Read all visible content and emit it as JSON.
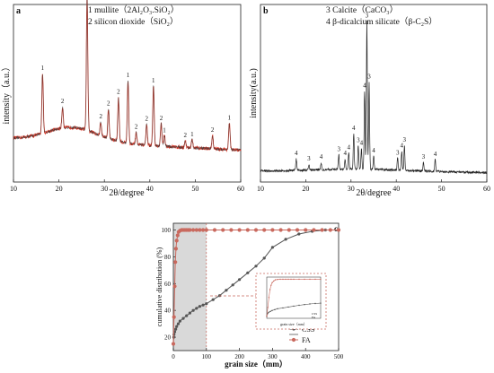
{
  "chart_data": [
    {
      "type": "line",
      "panel": "a",
      "legend": [
        "1 mullite（2Al₂O₃.SiO₂）",
        "2 silicon dioxide（SiO₂）"
      ],
      "xlabel": "2θ/degree",
      "ylabel": "intensity（a.u.）",
      "xlim": [
        10,
        60
      ],
      "xticks": [
        "10",
        "20",
        "30",
        "40",
        "50",
        "60"
      ],
      "line_colors": [
        "#e03a2a",
        "#3a3a3a"
      ],
      "peaks": [
        {
          "x": 16.4,
          "h": 0.45,
          "label": "1"
        },
        {
          "x": 20.8,
          "h": 0.16,
          "label": "2"
        },
        {
          "x": 26.2,
          "h": 1.0,
          "label": "1"
        },
        {
          "x": 29.2,
          "h": 0.1,
          "label": "2"
        },
        {
          "x": 30.9,
          "h": 0.22,
          "label": "2"
        },
        {
          "x": 33.1,
          "h": 0.33,
          "label": "2"
        },
        {
          "x": 35.2,
          "h": 0.47,
          "label": "1"
        },
        {
          "x": 37.0,
          "h": 0.09,
          "label": "2"
        },
        {
          "x": 39.3,
          "h": 0.16,
          "label": "2"
        },
        {
          "x": 40.8,
          "h": 0.45,
          "label": "1"
        },
        {
          "x": 42.5,
          "h": 0.17,
          "label": "2"
        },
        {
          "x": 43.2,
          "h": 0.08,
          "label": "1"
        },
        {
          "x": 47.8,
          "h": 0.05,
          "label": "2"
        },
        {
          "x": 49.3,
          "h": 0.06,
          "label": "1"
        },
        {
          "x": 53.8,
          "h": 0.1,
          "label": "2"
        },
        {
          "x": 57.5,
          "h": 0.2,
          "label": "1"
        }
      ]
    },
    {
      "type": "line",
      "panel": "b",
      "legend": [
        "3 Calcite（CaCO₃）",
        "4 β-dicalcium silicate（β-C₂S）"
      ],
      "xlabel": "2θ/degree",
      "ylabel": "intensity(a.u.)",
      "xlim": [
        10,
        60
      ],
      "xticks": [
        "10",
        "20",
        "30",
        "40",
        "50",
        "60"
      ],
      "line_color": "#222222",
      "peaks": [
        {
          "x": 17.9,
          "h": 0.08,
          "label": "4"
        },
        {
          "x": 20.7,
          "h": 0.04,
          "label": "3"
        },
        {
          "x": 23.4,
          "h": 0.05,
          "label": "4"
        },
        {
          "x": 27.3,
          "h": 0.1,
          "label": "3"
        },
        {
          "x": 28.7,
          "h": 0.07,
          "label": "4"
        },
        {
          "x": 29.5,
          "h": 0.11,
          "label": "4"
        },
        {
          "x": 30.6,
          "h": 0.24,
          "label": "4"
        },
        {
          "x": 31.6,
          "h": 0.16,
          "label": "3"
        },
        {
          "x": 32.3,
          "h": 0.14,
          "label": "4"
        },
        {
          "x": 33.0,
          "h": 0.53,
          "label": "4"
        },
        {
          "x": 33.5,
          "h": 1.0,
          "label": "3"
        },
        {
          "x": 34.0,
          "h": 0.59,
          "label": "3"
        },
        {
          "x": 35.0,
          "h": 0.09,
          "label": "4"
        },
        {
          "x": 40.3,
          "h": 0.08,
          "label": "3"
        },
        {
          "x": 41.2,
          "h": 0.13,
          "label": "4"
        },
        {
          "x": 41.8,
          "h": 0.17,
          "label": "3"
        },
        {
          "x": 46.0,
          "h": 0.06,
          "label": "3"
        },
        {
          "x": 48.6,
          "h": 0.08,
          "label": "4"
        }
      ]
    },
    {
      "type": "line",
      "panel": "c",
      "xlabel": "grain size（mm）",
      "ylabel": "cumulative distribution (%)",
      "xlim": [
        0,
        500
      ],
      "ylim": [
        10,
        105
      ],
      "xticks": [
        "0",
        "100",
        "200",
        "300",
        "400",
        "500"
      ],
      "yticks": [
        "20",
        "40",
        "60",
        "80",
        "100"
      ],
      "shaded_region": [
        0,
        100
      ],
      "series": [
        {
          "name": "CSS",
          "color": "#555555",
          "x": [
            0,
            1,
            2,
            4,
            7,
            10,
            15,
            20,
            30,
            40,
            50,
            60,
            70,
            80,
            90,
            100,
            120,
            140,
            160,
            180,
            200,
            225,
            250,
            275,
            300,
            340,
            380,
            420,
            460,
            500
          ],
          "y": [
            15,
            20,
            22,
            24,
            26,
            28,
            30,
            32,
            34,
            36,
            38,
            40,
            41.5,
            43,
            44,
            45,
            48,
            51,
            55,
            59,
            63,
            68,
            73,
            79,
            87,
            93,
            97,
            99,
            100,
            100
          ]
        },
        {
          "name": "FA",
          "color": "#c9695e",
          "x": [
            0,
            2,
            4,
            6,
            8,
            10,
            13,
            16,
            20,
            25,
            30,
            35,
            40,
            45,
            50,
            60,
            70,
            80,
            90,
            100,
            125,
            150,
            175,
            200,
            225,
            250,
            275,
            300,
            325,
            350,
            375,
            400,
            425,
            450,
            475,
            500
          ],
          "y": [
            15,
            35,
            58,
            76,
            86,
            92,
            96,
            98.5,
            99.5,
            100,
            100,
            100,
            100,
            100,
            100,
            100,
            100,
            100,
            100,
            100,
            100,
            100,
            100,
            100,
            100,
            100,
            100,
            100,
            100,
            100,
            100,
            100,
            100,
            100,
            100,
            100
          ]
        }
      ],
      "legend": [
        "CSS",
        "FA"
      ]
    }
  ],
  "panel_labels": {
    "a": "a",
    "b": "b",
    "c": "c"
  },
  "inset": {
    "xlabel": "grain size（mm）",
    "legend": [
      "CSS",
      "FA"
    ]
  }
}
